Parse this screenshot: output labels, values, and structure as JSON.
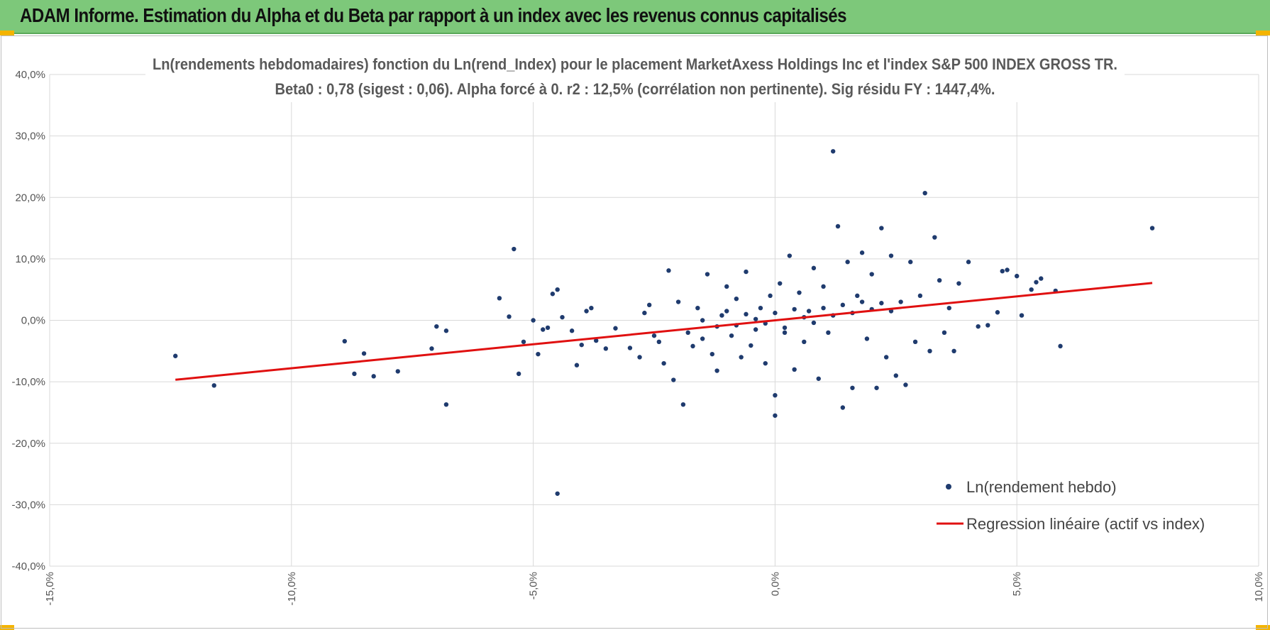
{
  "banner": {
    "title": "ADAM Informe. Estimation du Alpha et du Beta par rapport à un index avec les revenus connus capitalisés",
    "background": "#7dc87a"
  },
  "chart_data": {
    "type": "scatter",
    "title_line1": "Ln(rendements hebdomadaires) fonction du Ln(rend_Index) pour le placement MarketAxess Holdings Inc et l'index S&P 500 INDEX GROSS TR.",
    "title_line2": "Beta0 : 0,78 (sigest : 0,06).  Alpha forcé à 0. r2 : 12,5% (corrélation non pertinente). Sig résidu FY : 1447,4%.",
    "xlim": [
      -0.15,
      0.1
    ],
    "ylim": [
      -0.4,
      0.4
    ],
    "x_ticks": [
      -0.15,
      -0.1,
      -0.05,
      0.0,
      0.05,
      0.1
    ],
    "x_tick_labels": [
      "-15,0%",
      "-10,0%",
      "-5,0%",
      "0,0%",
      "5,0%",
      "10,0%"
    ],
    "y_ticks": [
      0.4,
      0.3,
      0.2,
      0.1,
      0.0,
      -0.1,
      -0.2,
      -0.3,
      -0.4
    ],
    "y_tick_labels": [
      "40,0%",
      "30,0%",
      "20,0%",
      "10,0%",
      "0,0%",
      "-10,0%",
      "-20,0%",
      "-30,0%",
      "-40,0%"
    ],
    "grid": true,
    "legend_position": "bottom-right",
    "series": [
      {
        "name": "Ln(rendement hebdo)",
        "kind": "scatter",
        "color": "#1f3b6e",
        "points": [
          [
            -0.124,
            -0.058
          ],
          [
            -0.116,
            -0.106
          ],
          [
            -0.089,
            -0.034
          ],
          [
            -0.087,
            -0.087
          ],
          [
            -0.085,
            -0.054
          ],
          [
            -0.083,
            -0.091
          ],
          [
            -0.078,
            -0.083
          ],
          [
            -0.071,
            -0.046
          ],
          [
            -0.07,
            -0.01
          ],
          [
            -0.068,
            -0.017
          ],
          [
            -0.068,
            -0.137
          ],
          [
            -0.057,
            0.036
          ],
          [
            -0.055,
            0.006
          ],
          [
            -0.054,
            0.116
          ],
          [
            -0.053,
            -0.087
          ],
          [
            -0.052,
            -0.035
          ],
          [
            -0.05,
            0.0
          ],
          [
            -0.049,
            -0.055
          ],
          [
            -0.048,
            -0.015
          ],
          [
            -0.047,
            -0.012
          ],
          [
            -0.046,
            0.043
          ],
          [
            -0.045,
            -0.282
          ],
          [
            -0.045,
            0.05
          ],
          [
            -0.044,
            0.005
          ],
          [
            -0.042,
            -0.017
          ],
          [
            -0.041,
            -0.073
          ],
          [
            -0.04,
            -0.04
          ],
          [
            -0.039,
            0.015
          ],
          [
            -0.038,
            0.02
          ],
          [
            -0.037,
            -0.033
          ],
          [
            -0.035,
            -0.046
          ],
          [
            -0.033,
            -0.013
          ],
          [
            -0.03,
            -0.045
          ],
          [
            -0.028,
            -0.06
          ],
          [
            -0.027,
            0.012
          ],
          [
            -0.026,
            0.025
          ],
          [
            -0.025,
            -0.025
          ],
          [
            -0.024,
            -0.035
          ],
          [
            -0.023,
            -0.07
          ],
          [
            -0.022,
            0.081
          ],
          [
            -0.021,
            -0.097
          ],
          [
            -0.02,
            0.03
          ],
          [
            -0.019,
            -0.137
          ],
          [
            -0.018,
            -0.02
          ],
          [
            -0.017,
            -0.042
          ],
          [
            -0.016,
            0.02
          ],
          [
            -0.015,
            -0.03
          ],
          [
            -0.014,
            0.075
          ],
          [
            -0.013,
            -0.055
          ],
          [
            -0.012,
            -0.082
          ],
          [
            -0.011,
            0.008
          ],
          [
            -0.01,
            0.055
          ],
          [
            -0.009,
            -0.025
          ],
          [
            -0.008,
            0.035
          ],
          [
            -0.007,
            -0.06
          ],
          [
            -0.006,
            0.079
          ],
          [
            -0.005,
            -0.041
          ],
          [
            -0.004,
            -0.015
          ],
          [
            -0.003,
            0.02
          ],
          [
            -0.002,
            -0.07
          ],
          [
            -0.001,
            0.04
          ],
          [
            0.0,
            -0.122
          ],
          [
            0.0,
            -0.155
          ],
          [
            0.001,
            0.06
          ],
          [
            0.002,
            -0.02
          ],
          [
            0.003,
            0.105
          ],
          [
            0.004,
            -0.08
          ],
          [
            0.005,
            0.045
          ],
          [
            0.006,
            -0.035
          ],
          [
            0.007,
            0.015
          ],
          [
            0.008,
            0.085
          ],
          [
            0.009,
            -0.095
          ],
          [
            0.01,
            0.055
          ],
          [
            0.011,
            -0.02
          ],
          [
            0.012,
            0.275
          ],
          [
            0.013,
            0.153
          ],
          [
            0.014,
            -0.142
          ],
          [
            0.015,
            0.095
          ],
          [
            0.016,
            -0.11
          ],
          [
            0.017,
            0.04
          ],
          [
            0.018,
            0.11
          ],
          [
            0.019,
            -0.03
          ],
          [
            0.02,
            0.075
          ],
          [
            0.021,
            -0.11
          ],
          [
            0.022,
            0.15
          ],
          [
            0.023,
            -0.06
          ],
          [
            0.024,
            0.105
          ],
          [
            0.025,
            -0.09
          ],
          [
            0.026,
            0.03
          ],
          [
            0.027,
            -0.105
          ],
          [
            0.028,
            0.095
          ],
          [
            0.029,
            -0.035
          ],
          [
            0.03,
            0.04
          ],
          [
            0.031,
            0.207
          ],
          [
            0.032,
            -0.05
          ],
          [
            0.033,
            0.135
          ],
          [
            0.034,
            0.065
          ],
          [
            0.035,
            -0.02
          ],
          [
            0.036,
            0.02
          ],
          [
            0.037,
            -0.05
          ],
          [
            0.038,
            0.06
          ],
          [
            0.04,
            0.095
          ],
          [
            0.042,
            -0.01
          ],
          [
            0.044,
            -0.008
          ],
          [
            0.046,
            0.013
          ],
          [
            0.047,
            0.08
          ],
          [
            0.048,
            0.082
          ],
          [
            0.05,
            0.072
          ],
          [
            0.051,
            0.008
          ],
          [
            0.053,
            0.05
          ],
          [
            0.054,
            0.062
          ],
          [
            0.055,
            0.068
          ],
          [
            0.058,
            0.048
          ],
          [
            0.059,
            -0.042
          ],
          [
            0.078,
            0.15
          ],
          [
            -0.015,
            0.0
          ],
          [
            -0.012,
            -0.01
          ],
          [
            -0.01,
            0.015
          ],
          [
            -0.008,
            -0.008
          ],
          [
            -0.006,
            0.01
          ],
          [
            -0.004,
            0.002
          ],
          [
            -0.002,
            -0.005
          ],
          [
            0.0,
            0.012
          ],
          [
            0.002,
            -0.012
          ],
          [
            0.004,
            0.018
          ],
          [
            0.006,
            0.005
          ],
          [
            0.008,
            -0.004
          ],
          [
            0.01,
            0.02
          ],
          [
            0.012,
            0.008
          ],
          [
            0.014,
            0.025
          ],
          [
            0.016,
            0.012
          ],
          [
            0.018,
            0.03
          ],
          [
            0.02,
            0.018
          ],
          [
            0.022,
            0.028
          ],
          [
            0.024,
            0.015
          ]
        ]
      },
      {
        "name": "Regression linéaire (actif vs index)",
        "kind": "line",
        "color": "#e01010",
        "points": [
          [
            -0.124,
            -0.0967
          ],
          [
            0.078,
            0.0608
          ]
        ]
      }
    ]
  }
}
